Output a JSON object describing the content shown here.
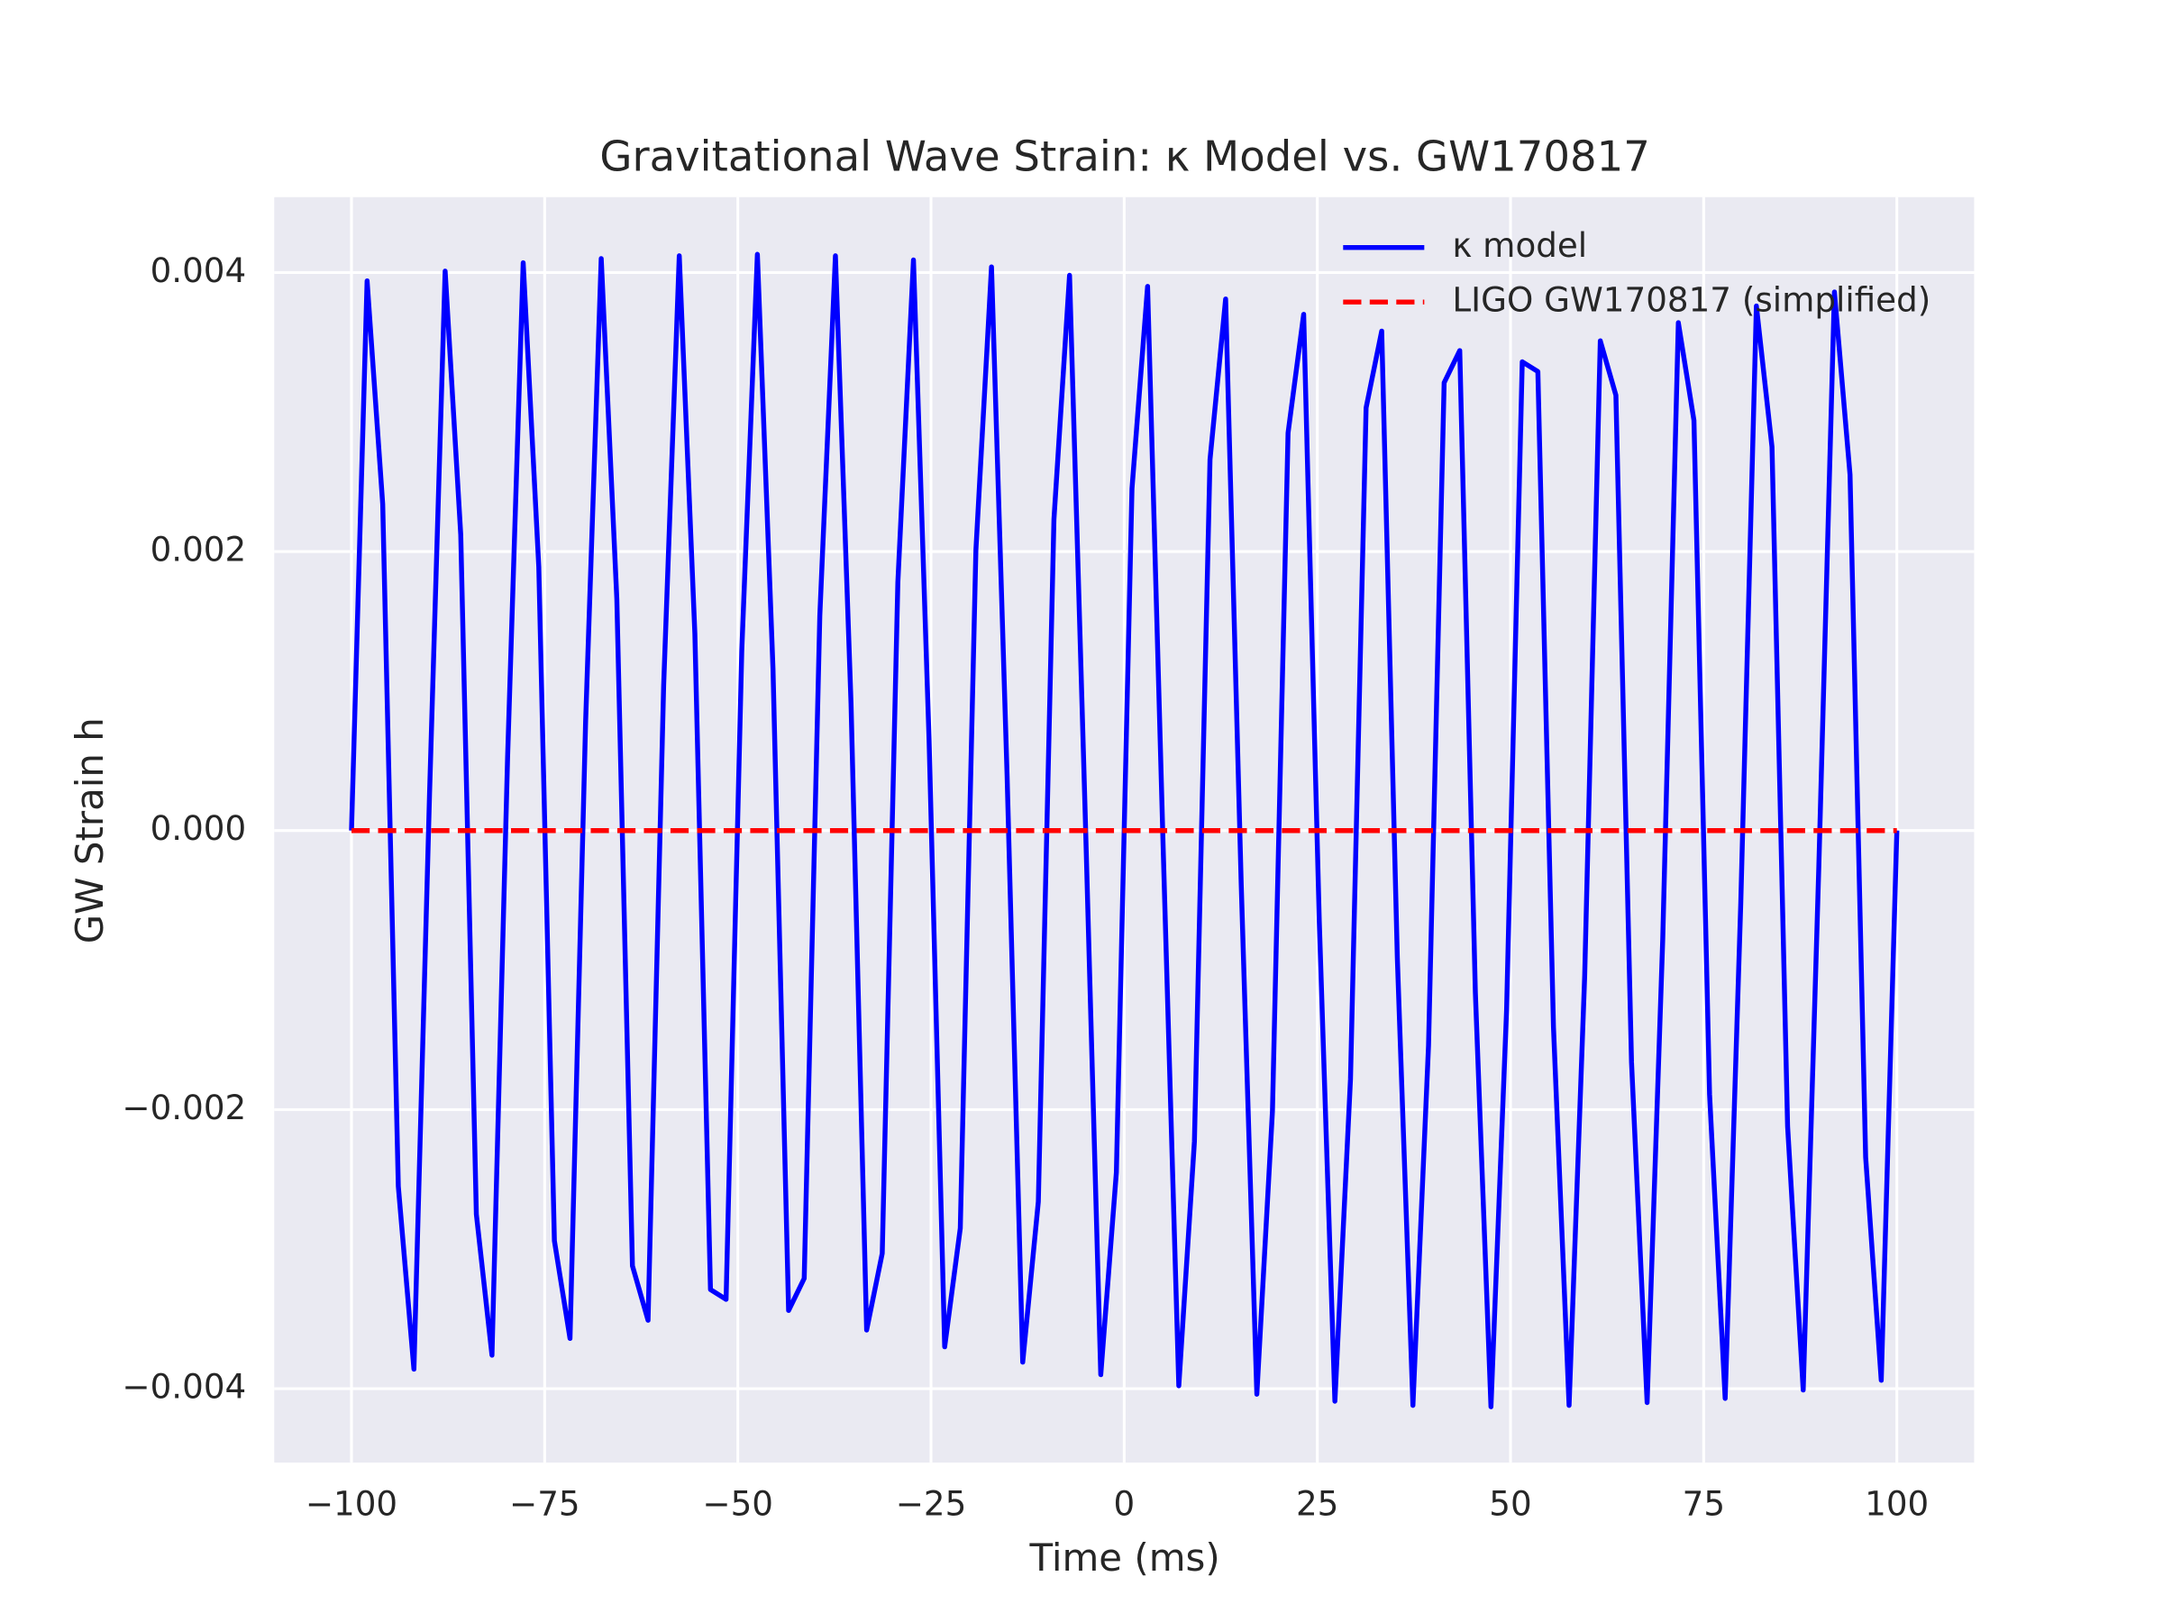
{
  "chart_data": {
    "type": "line",
    "title": "Gravitational Wave Strain: κ Model vs. GW170817",
    "xlabel": "Time (ms)",
    "ylabel": "GW Strain h",
    "x": [
      -100,
      -97.98,
      -95.96,
      -93.94,
      -91.92,
      -89.9,
      -87.88,
      -85.86,
      -83.84,
      -81.82,
      -79.8,
      -77.78,
      -75.76,
      -73.74,
      -71.72,
      -69.7,
      -67.68,
      -65.66,
      -63.64,
      -61.62,
      -59.6,
      -57.58,
      -55.56,
      -53.54,
      -51.52,
      -49.49,
      -47.47,
      -45.45,
      -43.43,
      -41.41,
      -39.39,
      -37.37,
      -35.35,
      -33.33,
      -31.31,
      -29.29,
      -27.27,
      -25.25,
      -23.23,
      -21.21,
      -19.19,
      -17.17,
      -15.15,
      -13.13,
      -11.11,
      -9.09,
      -7.07,
      -5.05,
      -3.03,
      -1.01,
      1.01,
      3.03,
      5.05,
      7.07,
      9.09,
      11.11,
      13.13,
      15.15,
      17.17,
      19.19,
      21.21,
      23.23,
      25.25,
      27.27,
      29.29,
      31.31,
      33.33,
      35.35,
      37.37,
      39.39,
      41.41,
      43.43,
      45.45,
      47.47,
      49.49,
      51.52,
      53.54,
      55.56,
      57.58,
      59.6,
      61.62,
      63.64,
      65.66,
      67.68,
      69.7,
      71.72,
      73.74,
      75.76,
      77.78,
      79.8,
      81.82,
      83.84,
      85.86,
      87.88,
      89.9,
      91.92,
      93.94,
      95.96,
      97.98,
      100
    ],
    "series": [
      {
        "name": "κ model",
        "color": "#0000ff",
        "style": "solid",
        "values": [
          0,
          0.00394,
          0.00234,
          -0.00255,
          -0.00386,
          0.00026,
          0.00401,
          0.00212,
          -0.00275,
          -0.00376,
          0.00052,
          0.00407,
          0.00189,
          -0.00294,
          -0.00364,
          0.00078,
          0.0041,
          0.00166,
          -0.00312,
          -0.00351,
          0.00104,
          0.00412,
          0.00141,
          -0.00329,
          -0.00336,
          0.00129,
          0.00413,
          0.00116,
          -0.00344,
          -0.00321,
          0.00154,
          0.00412,
          0.00091,
          -0.00358,
          -0.00303,
          0.00178,
          0.00409,
          0.00065,
          -0.0037,
          -0.00285,
          0.00201,
          0.00404,
          0.00039,
          -0.00381,
          -0.00266,
          0.00223,
          0.00398,
          0.00013,
          -0.0039,
          -0.00245,
          0.00245,
          0.0039,
          -0.00013,
          -0.00398,
          -0.00223,
          0.00266,
          0.00381,
          -0.00039,
          -0.00404,
          -0.00201,
          0.00285,
          0.0037,
          -0.00065,
          -0.00409,
          -0.00178,
          0.00303,
          0.00358,
          -0.00091,
          -0.00412,
          -0.00154,
          0.00321,
          0.00344,
          -0.00116,
          -0.00413,
          -0.00129,
          0.00336,
          0.00329,
          -0.00141,
          -0.00412,
          -0.00104,
          0.00351,
          0.00312,
          -0.00166,
          -0.0041,
          -0.00078,
          0.00364,
          0.00294,
          -0.00189,
          -0.00407,
          -0.00052,
          0.00376,
          0.00275,
          -0.00212,
          -0.00401,
          -0.00026,
          0.00386,
          0.00255,
          -0.00234,
          -0.00394,
          0
        ]
      },
      {
        "name": "LIGO GW170817 (simplified)",
        "color": "#ff0000",
        "style": "dashed",
        "values": [
          0,
          0,
          0,
          0,
          0,
          0,
          0,
          0,
          0,
          0,
          0,
          0,
          0,
          0,
          0,
          0,
          0,
          0,
          0,
          0,
          0,
          0,
          0,
          0,
          0,
          0,
          0,
          0,
          0,
          0,
          0,
          0,
          0,
          0,
          0,
          0,
          0,
          0,
          0,
          0,
          0,
          0,
          0,
          0,
          0,
          0,
          0,
          0,
          0,
          0,
          0,
          0,
          0,
          0,
          0,
          0,
          0,
          0,
          0,
          0,
          0,
          0,
          0,
          0,
          0,
          0,
          0,
          0,
          0,
          0,
          0,
          0,
          0,
          0,
          0,
          0,
          0,
          0,
          0,
          0,
          0,
          0,
          0,
          0,
          0,
          0,
          0,
          0,
          0,
          0,
          0,
          0,
          0,
          0,
          0,
          0,
          0,
          0,
          0,
          0
        ]
      }
    ],
    "xlim": [
      -110,
      110
    ],
    "xticks": [
      {
        "value": -100,
        "label": "−100"
      },
      {
        "value": -75,
        "label": "−75"
      },
      {
        "value": -50,
        "label": "−50"
      },
      {
        "value": -25,
        "label": "−25"
      },
      0,
      25,
      50,
      75,
      100
    ],
    "ylim": [
      -0.00453,
      0.00454
    ],
    "yticks": [
      {
        "value": -0.004,
        "label": "−0.004"
      },
      {
        "value": -0.002,
        "label": "−0.002"
      },
      {
        "value": 0,
        "label": "0.000"
      },
      0.002,
      0.004
    ],
    "grid": true,
    "legend": "upper right"
  }
}
